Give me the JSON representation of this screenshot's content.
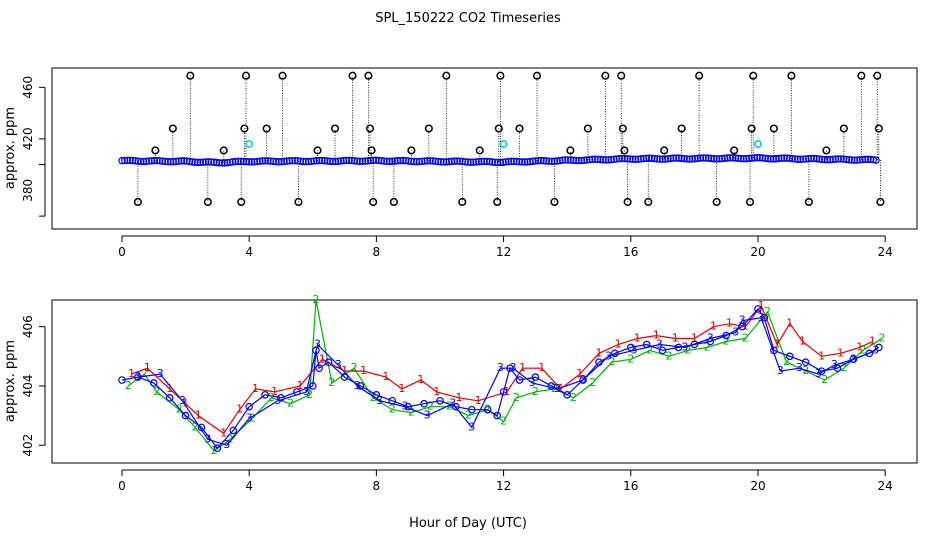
{
  "figure": {
    "title": "SPL_150222  CO2 Timeseries",
    "xlabel": "Hour of Day (UTC)"
  },
  "chart_data": [
    {
      "type": "scatter",
      "ylabel": "approx. ppm",
      "xlim": [
        -2.2,
        25.0
      ],
      "ylim": [
        350,
        475
      ],
      "x_ticks": [
        0,
        4,
        8,
        12,
        16,
        20,
        24
      ],
      "y_ticks": [
        360,
        400,
        420,
        460
      ],
      "y_tick_labels": [
        "380",
        "420",
        "460"
      ],
      "y_tick_values": [
        380,
        420,
        460
      ],
      "drop_line_color": "#000000",
      "series": [
        {
          "marker": "o",
          "color": "#0000ff",
          "baseline": {
            "x": [
              0,
              2,
              3,
              4,
              8,
              12,
              16,
              20,
              24
            ],
            "values": [
              403,
              402.5,
              401.5,
              402.5,
              403,
              402,
              404.5,
              405,
              403.5
            ]
          }
        },
        {
          "marker": "o",
          "color": "#000000",
          "x": [
            0.5,
            1.05,
            1.6,
            2.15,
            2.7,
            3.2,
            3.75,
            3.85,
            3.9,
            4.55,
            5.05,
            5.55,
            6.15,
            6.7,
            7.25,
            7.75,
            7.8,
            7.85,
            7.9,
            8.55,
            9.1,
            9.65,
            10.2,
            10.7,
            11.25,
            11.8,
            11.85,
            11.9,
            12.5,
            13.05,
            13.6,
            14.1,
            14.65,
            15.2,
            15.7,
            15.75,
            15.8,
            15.9,
            16.55,
            17.05,
            17.6,
            18.15,
            18.7,
            19.25,
            19.75,
            19.8,
            19.85,
            20.5,
            21.05,
            21.6,
            22.15,
            22.7,
            23.25,
            23.75,
            23.8,
            23.85
          ],
          "y": [
            371,
            411,
            428,
            469,
            371,
            411,
            371,
            428,
            469,
            428,
            469,
            371,
            411,
            428,
            469,
            469,
            428,
            411,
            371,
            371,
            411,
            428,
            469,
            371,
            411,
            371,
            428,
            469,
            428,
            469,
            371,
            411,
            428,
            469,
            469,
            428,
            411,
            371,
            371,
            411,
            428,
            469,
            371,
            411,
            371,
            428,
            469,
            428,
            469,
            371,
            411,
            428,
            469,
            469,
            428,
            371
          ]
        },
        {
          "marker": "o",
          "color": "#00c8c8",
          "x": [
            4.0,
            12.0,
            20.0
          ],
          "y": [
            416,
            416,
            416
          ]
        }
      ]
    },
    {
      "type": "line",
      "ylabel": "approx. ppm",
      "xlim": [
        -2.2,
        25.0
      ],
      "ylim": [
        401.4,
        406.9
      ],
      "x_ticks": [
        0,
        4,
        8,
        12,
        16,
        20,
        24
      ],
      "y_ticks": [
        402,
        404,
        406
      ],
      "series": [
        {
          "symbol": "o",
          "color": "#0000ff",
          "x": [
            0,
            0.5,
            1,
            1.5,
            2,
            2.5,
            3,
            3.5,
            4,
            4.5,
            5,
            5.5,
            6,
            6.1,
            6.2,
            6.5,
            7,
            7.5,
            8,
            8.5,
            9,
            9.5,
            10,
            10.5,
            11,
            11.5,
            11.8,
            12,
            12.2,
            12.5,
            13,
            13.5,
            14,
            14.5,
            15,
            15.5,
            16,
            16.5,
            17,
            17.5,
            18,
            18.5,
            19,
            19.5,
            20,
            20.2,
            20.5,
            21,
            21.5,
            22,
            22.5,
            23,
            23.5,
            23.8
          ],
          "y": [
            404.2,
            404.3,
            404.1,
            403.6,
            403.0,
            402.6,
            401.9,
            402.5,
            403.3,
            403.7,
            403.6,
            403.8,
            404.0,
            405.2,
            404.6,
            404.8,
            404.3,
            404.0,
            403.7,
            403.5,
            403.3,
            403.4,
            403.5,
            403.3,
            403.2,
            403.2,
            403.0,
            403.8,
            404.6,
            404.2,
            404.3,
            404.0,
            403.7,
            404.2,
            404.8,
            405.1,
            405.3,
            405.4,
            405.2,
            405.3,
            405.4,
            405.5,
            405.7,
            406.0,
            406.6,
            406.3,
            405.2,
            405.0,
            404.8,
            404.5,
            404.6,
            404.9,
            405.1,
            405.3
          ]
        },
        {
          "symbol": "1",
          "color": "#e00000",
          "x": [
            0.3,
            0.8,
            1.5,
            2.0,
            2.4,
            3.2,
            3.7,
            4.2,
            4.8,
            5.6,
            6.3,
            7.0,
            7.6,
            8.3,
            8.8,
            9.4,
            9.9,
            10.6,
            11.2,
            12.1,
            12.6,
            13.2,
            13.8,
            14.4,
            15.0,
            15.6,
            16.2,
            16.8,
            17.4,
            18.0,
            18.6,
            19.1,
            19.6,
            20.1,
            20.6,
            21.0,
            21.4,
            22.0,
            22.6,
            23.2,
            23.6
          ],
          "y": [
            404.4,
            404.6,
            403.9,
            403.4,
            403.0,
            402.4,
            403.2,
            403.9,
            403.8,
            404.0,
            404.9,
            404.5,
            404.5,
            404.3,
            403.9,
            404.2,
            403.8,
            403.6,
            403.5,
            403.8,
            404.6,
            404.6,
            403.9,
            404.4,
            405.1,
            405.4,
            405.6,
            405.7,
            405.6,
            405.6,
            406.0,
            406.1,
            406.0,
            406.7,
            405.4,
            406.1,
            405.5,
            405.0,
            405.1,
            405.3,
            405.5
          ]
        },
        {
          "symbol": "2",
          "color": "#00b000",
          "x": [
            0.2,
            0.7,
            1.1,
            1.8,
            2.3,
            2.9,
            3.4,
            4.1,
            4.7,
            5.3,
            5.9,
            6.1,
            6.6,
            7.3,
            7.9,
            8.5,
            9.1,
            9.7,
            10.3,
            10.9,
            11.5,
            12.0,
            12.4,
            13.0,
            13.6,
            14.2,
            14.8,
            15.4,
            16.0,
            16.6,
            17.2,
            17.8,
            18.4,
            19.0,
            19.6,
            20.3,
            20.9,
            21.5,
            22.1,
            22.7,
            23.3,
            23.9
          ],
          "y": [
            404.0,
            404.4,
            403.8,
            403.2,
            402.6,
            401.8,
            402.2,
            402.9,
            403.6,
            403.4,
            403.7,
            406.9,
            404.1,
            404.6,
            403.6,
            403.2,
            403.1,
            403.3,
            403.3,
            403.0,
            403.2,
            402.8,
            403.6,
            403.8,
            403.9,
            403.6,
            404.1,
            404.8,
            404.9,
            405.2,
            405.0,
            405.2,
            405.3,
            405.5,
            405.6,
            406.5,
            404.8,
            404.5,
            404.2,
            404.6,
            405.2,
            405.6
          ]
        },
        {
          "symbol": "3",
          "color": "#0000ff",
          "x": [
            0.5,
            1.2,
            1.9,
            2.7,
            3.3,
            4.0,
            4.9,
            5.8,
            6.15,
            6.8,
            7.4,
            8.1,
            8.9,
            9.6,
            10.4,
            11.0,
            11.9,
            12.3,
            12.9,
            13.7,
            14.5,
            15.3,
            16.1,
            16.9,
            17.7,
            18.5,
            19.3,
            19.5,
            20.1,
            20.7,
            21.3,
            21.9,
            22.4,
            23.0,
            23.7
          ],
          "y": [
            404.3,
            404.4,
            403.5,
            402.2,
            402.0,
            402.9,
            403.5,
            403.8,
            405.4,
            404.7,
            404.0,
            403.5,
            403.3,
            403.0,
            403.4,
            402.6,
            404.6,
            404.6,
            404.1,
            403.9,
            404.2,
            405.0,
            405.2,
            405.4,
            405.3,
            405.6,
            405.8,
            406.2,
            406.3,
            404.5,
            404.6,
            404.4,
            404.7,
            404.9,
            405.2
          ]
        }
      ]
    }
  ]
}
